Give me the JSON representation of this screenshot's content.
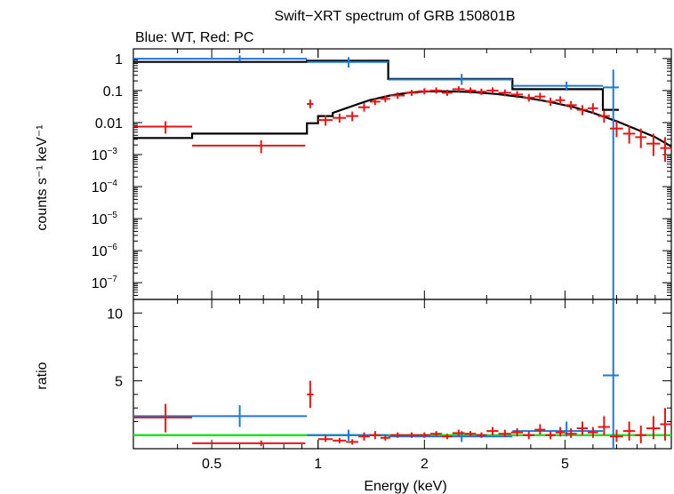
{
  "chart_data": {
    "type": "scatter",
    "title": "Swift−XRT spectrum of GRB 150801B",
    "subtitle": "Blue: WT, Red: PC",
    "xlabel": "Energy (keV)",
    "x_scale": "log",
    "xlim": [
      0.3,
      10
    ],
    "x_ticks": [
      "0.5",
      "1",
      "2",
      "5"
    ],
    "colors": {
      "wt": "#1e78dc",
      "pc": "#e61414",
      "model": "#000000",
      "unity": "#1ee61e"
    },
    "panels": [
      {
        "name": "spectrum",
        "ylabel": "counts s⁻¹ keV⁻¹",
        "y_scale": "log",
        "ylim": [
          3e-08,
          2.0
        ],
        "y_ticks": [
          {
            "v": 1,
            "label": "1"
          },
          {
            "v": 0.1,
            "label": "0.1"
          },
          {
            "v": 0.01,
            "label": "0.01"
          },
          {
            "v": 0.001,
            "label": "10",
            "exp": "−3"
          },
          {
            "v": 0.0001,
            "label": "10",
            "exp": "−4"
          },
          {
            "v": 1e-05,
            "label": "10",
            "exp": "−5"
          },
          {
            "v": 1e-06,
            "label": "10",
            "exp": "−6"
          },
          {
            "v": 1e-07,
            "label": "10",
            "exp": "−7"
          }
        ],
        "series": [
          {
            "key": "wt",
            "points": [
              {
                "x": 0.6,
                "xlo": 0.3,
                "xhi": 0.93,
                "y": 0.98,
                "ylo": 0.8,
                "yhi": 1.25
              },
              {
                "x": 1.22,
                "xlo": 0.93,
                "xhi": 1.58,
                "y": 0.78,
                "ylo": 0.52,
                "yhi": 1.1
              },
              {
                "x": 2.55,
                "xlo": 1.58,
                "xhi": 3.55,
                "y": 0.22,
                "ylo": 0.15,
                "yhi": 0.33
              },
              {
                "x": 5.05,
                "xlo": 3.55,
                "xhi": 6.4,
                "y": 0.14,
                "ylo": 0.1,
                "yhi": 0.19
              },
              {
                "x": 6.85,
                "xlo": 6.4,
                "xhi": 7.1,
                "y": 0.125,
                "ylo": 1e-10,
                "yhi": 0.45
              }
            ]
          },
          {
            "key": "pc",
            "points": [
              {
                "x": 0.37,
                "xlo": 0.3,
                "xhi": 0.44,
                "y": 0.0075,
                "ylo": 0.0045,
                "yhi": 0.011
              },
              {
                "x": 0.69,
                "xlo": 0.44,
                "xhi": 0.92,
                "y": 0.0019,
                "ylo": 0.0011,
                "yhi": 0.0028
              },
              {
                "x": 0.95,
                "xlo": 0.93,
                "xhi": 0.97,
                "y": 0.038,
                "ylo": 0.028,
                "yhi": 0.052
              },
              {
                "x": 1.05,
                "xlo": 1.0,
                "xhi": 1.1,
                "y": 0.012,
                "ylo": 0.008,
                "yhi": 0.017
              },
              {
                "x": 1.15,
                "xlo": 1.1,
                "xhi": 1.2,
                "y": 0.014,
                "ylo": 0.01,
                "yhi": 0.019
              },
              {
                "x": 1.25,
                "xlo": 1.2,
                "xhi": 1.3,
                "y": 0.016,
                "ylo": 0.011,
                "yhi": 0.022
              },
              {
                "x": 1.35,
                "xlo": 1.3,
                "xhi": 1.4,
                "y": 0.03,
                "ylo": 0.022,
                "yhi": 0.04
              },
              {
                "x": 1.45,
                "xlo": 1.4,
                "xhi": 1.5,
                "y": 0.045,
                "ylo": 0.035,
                "yhi": 0.058
              },
              {
                "x": 1.55,
                "xlo": 1.5,
                "xhi": 1.6,
                "y": 0.055,
                "ylo": 0.043,
                "yhi": 0.07
              },
              {
                "x": 1.68,
                "xlo": 1.6,
                "xhi": 1.76,
                "y": 0.07,
                "ylo": 0.055,
                "yhi": 0.088
              },
              {
                "x": 1.84,
                "xlo": 1.76,
                "xhi": 1.92,
                "y": 0.085,
                "ylo": 0.068,
                "yhi": 0.105
              },
              {
                "x": 2.0,
                "xlo": 1.92,
                "xhi": 2.08,
                "y": 0.095,
                "ylo": 0.076,
                "yhi": 0.118
              },
              {
                "x": 2.16,
                "xlo": 2.08,
                "xhi": 2.24,
                "y": 0.1,
                "ylo": 0.08,
                "yhi": 0.125
              },
              {
                "x": 2.32,
                "xlo": 2.24,
                "xhi": 2.4,
                "y": 0.085,
                "ylo": 0.068,
                "yhi": 0.106
              },
              {
                "x": 2.5,
                "xlo": 2.4,
                "xhi": 2.6,
                "y": 0.11,
                "ylo": 0.088,
                "yhi": 0.136
              },
              {
                "x": 2.7,
                "xlo": 2.6,
                "xhi": 2.8,
                "y": 0.1,
                "ylo": 0.08,
                "yhi": 0.125
              },
              {
                "x": 2.9,
                "xlo": 2.8,
                "xhi": 3.0,
                "y": 0.092,
                "ylo": 0.073,
                "yhi": 0.115
              },
              {
                "x": 3.12,
                "xlo": 3.0,
                "xhi": 3.24,
                "y": 0.1,
                "ylo": 0.08,
                "yhi": 0.125
              },
              {
                "x": 3.38,
                "xlo": 3.24,
                "xhi": 3.52,
                "y": 0.085,
                "ylo": 0.066,
                "yhi": 0.108
              },
              {
                "x": 3.66,
                "xlo": 3.52,
                "xhi": 3.8,
                "y": 0.075,
                "ylo": 0.058,
                "yhi": 0.096
              },
              {
                "x": 3.95,
                "xlo": 3.8,
                "xhi": 4.1,
                "y": 0.06,
                "ylo": 0.045,
                "yhi": 0.078
              },
              {
                "x": 4.25,
                "xlo": 4.1,
                "xhi": 4.4,
                "y": 0.065,
                "ylo": 0.049,
                "yhi": 0.085
              },
              {
                "x": 4.55,
                "xlo": 4.4,
                "xhi": 4.7,
                "y": 0.045,
                "ylo": 0.033,
                "yhi": 0.06
              },
              {
                "x": 4.85,
                "xlo": 4.7,
                "xhi": 5.0,
                "y": 0.05,
                "ylo": 0.037,
                "yhi": 0.066
              },
              {
                "x": 5.2,
                "xlo": 5.0,
                "xhi": 5.4,
                "y": 0.035,
                "ylo": 0.025,
                "yhi": 0.047
              },
              {
                "x": 5.6,
                "xlo": 5.4,
                "xhi": 5.8,
                "y": 0.025,
                "ylo": 0.017,
                "yhi": 0.035
              },
              {
                "x": 6.0,
                "xlo": 5.8,
                "xhi": 6.2,
                "y": 0.028,
                "ylo": 0.019,
                "yhi": 0.04
              },
              {
                "x": 6.45,
                "xlo": 6.2,
                "xhi": 6.7,
                "y": 0.016,
                "ylo": 0.01,
                "yhi": 0.024
              },
              {
                "x": 7.0,
                "xlo": 6.7,
                "xhi": 7.3,
                "y": 0.0065,
                "ylo": 0.0035,
                "yhi": 0.011
              },
              {
                "x": 7.6,
                "xlo": 7.3,
                "xhi": 7.9,
                "y": 0.0045,
                "ylo": 0.0022,
                "yhi": 0.008
              },
              {
                "x": 8.2,
                "xlo": 7.9,
                "xhi": 8.5,
                "y": 0.0035,
                "ylo": 0.0016,
                "yhi": 0.0065
              },
              {
                "x": 8.9,
                "xlo": 8.5,
                "xhi": 9.3,
                "y": 0.0022,
                "ylo": 0.0009,
                "yhi": 0.0045
              },
              {
                "x": 9.6,
                "xlo": 9.3,
                "xhi": 10.0,
                "y": 0.0016,
                "ylo": 0.0006,
                "yhi": 0.0035
              }
            ]
          }
        ],
        "models": [
          {
            "key": "wt",
            "steps": [
              [
                0.3,
                0.93,
                0.78
              ],
              [
                0.93,
                1.58,
                0.85
              ],
              [
                1.58,
                3.55,
                0.23
              ],
              [
                3.55,
                6.4,
                0.11
              ],
              [
                6.4,
                7.1,
                0.025
              ]
            ]
          },
          {
            "key": "pc",
            "steps": [
              [
                0.3,
                0.44,
                0.0033
              ],
              [
                0.44,
                0.93,
                0.0045
              ],
              [
                0.93,
                1.0,
                0.0095
              ],
              [
                1.0,
                1.1,
                0.016
              ]
            ],
            "curve": [
              [
                1.1,
                0.02
              ],
              [
                1.2,
                0.028
              ],
              [
                1.3,
                0.038
              ],
              [
                1.4,
                0.05
              ],
              [
                1.6,
                0.07
              ],
              [
                1.8,
                0.085
              ],
              [
                2.0,
                0.093
              ],
              [
                2.3,
                0.095
              ],
              [
                2.7,
                0.09
              ],
              [
                3.2,
                0.078
              ],
              [
                3.8,
                0.062
              ],
              [
                4.5,
                0.045
              ],
              [
                5.3,
                0.03
              ],
              [
                6.0,
                0.02
              ],
              [
                7.0,
                0.011
              ],
              [
                8.0,
                0.006
              ],
              [
                9.0,
                0.0035
              ],
              [
                10.0,
                0.0018
              ]
            ]
          }
        ]
      },
      {
        "name": "ratio",
        "ylabel": "ratio",
        "y_scale": "linear",
        "ylim": [
          0,
          11
        ],
        "y_ticks": [
          {
            "v": 5,
            "label": "5"
          },
          {
            "v": 10,
            "label": "10"
          }
        ],
        "unity": 1,
        "series": [
          {
            "key": "wt",
            "points": [
              {
                "x": 0.6,
                "xlo": 0.3,
                "xhi": 0.93,
                "y": 2.4,
                "ylo": 1.6,
                "yhi": 3.2
              },
              {
                "x": 1.22,
                "xlo": 0.93,
                "xhi": 1.58,
                "y": 1.0,
                "ylo": 0.6,
                "yhi": 1.4
              },
              {
                "x": 2.55,
                "xlo": 1.58,
                "xhi": 3.55,
                "y": 0.9,
                "ylo": 0.5,
                "yhi": 1.3
              },
              {
                "x": 5.05,
                "xlo": 3.55,
                "xhi": 6.4,
                "y": 1.3,
                "ylo": 0.9,
                "yhi": 2.0
              },
              {
                "x": 6.85,
                "xlo": 6.4,
                "xhi": 7.1,
                "y": 5.4,
                "ylo": 0,
                "yhi": 11
              }
            ]
          },
          {
            "key": "pc",
            "points": [
              {
                "x": 0.37,
                "xlo": 0.3,
                "xhi": 0.44,
                "y": 2.3,
                "ylo": 1.2,
                "yhi": 3.3
              },
              {
                "x": 0.69,
                "xlo": 0.44,
                "xhi": 0.92,
                "y": 0.4,
                "ylo": 0.2,
                "yhi": 0.6
              },
              {
                "x": 0.95,
                "xlo": 0.93,
                "xhi": 0.97,
                "y": 4.0,
                "ylo": 3.0,
                "yhi": 5.0
              },
              {
                "x": 1.05,
                "xlo": 1.0,
                "xhi": 1.1,
                "y": 0.7,
                "ylo": 0.5,
                "yhi": 1.0
              },
              {
                "x": 1.15,
                "xlo": 1.1,
                "xhi": 1.2,
                "y": 0.6,
                "ylo": 0.4,
                "yhi": 0.8
              },
              {
                "x": 1.25,
                "xlo": 1.2,
                "xhi": 1.3,
                "y": 0.5,
                "ylo": 0.3,
                "yhi": 0.7
              },
              {
                "x": 1.35,
                "xlo": 1.3,
                "xhi": 1.4,
                "y": 0.9,
                "ylo": 0.6,
                "yhi": 1.2
              },
              {
                "x": 1.45,
                "xlo": 1.4,
                "xhi": 1.5,
                "y": 1.0,
                "ylo": 0.7,
                "yhi": 1.3
              },
              {
                "x": 1.55,
                "xlo": 1.5,
                "xhi": 1.6,
                "y": 0.8,
                "ylo": 0.6,
                "yhi": 1.0
              },
              {
                "x": 1.68,
                "xlo": 1.6,
                "xhi": 1.76,
                "y": 1.0,
                "ylo": 0.8,
                "yhi": 1.2
              },
              {
                "x": 1.84,
                "xlo": 1.76,
                "xhi": 1.92,
                "y": 1.0,
                "ylo": 0.8,
                "yhi": 1.2
              },
              {
                "x": 2.0,
                "xlo": 1.92,
                "xhi": 2.08,
                "y": 1.0,
                "ylo": 0.8,
                "yhi": 1.2
              },
              {
                "x": 2.16,
                "xlo": 2.08,
                "xhi": 2.24,
                "y": 1.1,
                "ylo": 0.9,
                "yhi": 1.3
              },
              {
                "x": 2.32,
                "xlo": 2.24,
                "xhi": 2.4,
                "y": 0.9,
                "ylo": 0.7,
                "yhi": 1.1
              },
              {
                "x": 2.5,
                "xlo": 2.4,
                "xhi": 2.6,
                "y": 1.15,
                "ylo": 0.9,
                "yhi": 1.4
              },
              {
                "x": 2.7,
                "xlo": 2.6,
                "xhi": 2.8,
                "y": 1.1,
                "ylo": 0.9,
                "yhi": 1.3
              },
              {
                "x": 2.9,
                "xlo": 2.8,
                "xhi": 3.0,
                "y": 1.0,
                "ylo": 0.8,
                "yhi": 1.2
              },
              {
                "x": 3.12,
                "xlo": 3.0,
                "xhi": 3.24,
                "y": 1.3,
                "ylo": 1.0,
                "yhi": 1.6
              },
              {
                "x": 3.38,
                "xlo": 3.24,
                "xhi": 3.52,
                "y": 1.1,
                "ylo": 0.85,
                "yhi": 1.4
              },
              {
                "x": 3.66,
                "xlo": 3.52,
                "xhi": 3.8,
                "y": 1.2,
                "ylo": 0.9,
                "yhi": 1.5
              },
              {
                "x": 3.95,
                "xlo": 3.8,
                "xhi": 4.1,
                "y": 1.0,
                "ylo": 0.7,
                "yhi": 1.3
              },
              {
                "x": 4.25,
                "xlo": 4.1,
                "xhi": 4.4,
                "y": 1.4,
                "ylo": 1.05,
                "yhi": 1.8
              },
              {
                "x": 4.55,
                "xlo": 4.4,
                "xhi": 4.7,
                "y": 1.0,
                "ylo": 0.7,
                "yhi": 1.3
              },
              {
                "x": 4.85,
                "xlo": 4.7,
                "xhi": 5.0,
                "y": 1.2,
                "ylo": 0.9,
                "yhi": 1.6
              },
              {
                "x": 5.2,
                "xlo": 5.0,
                "xhi": 5.4,
                "y": 1.1,
                "ylo": 0.8,
                "yhi": 1.5
              },
              {
                "x": 5.6,
                "xlo": 5.4,
                "xhi": 5.8,
                "y": 1.5,
                "ylo": 1.0,
                "yhi": 2.0
              },
              {
                "x": 6.0,
                "xlo": 5.8,
                "xhi": 6.2,
                "y": 1.2,
                "ylo": 0.8,
                "yhi": 1.6
              },
              {
                "x": 6.45,
                "xlo": 6.2,
                "xhi": 6.7,
                "y": 1.6,
                "ylo": 1.0,
                "yhi": 2.4
              },
              {
                "x": 7.0,
                "xlo": 6.7,
                "xhi": 7.3,
                "y": 0.9,
                "ylo": 0.5,
                "yhi": 1.4
              },
              {
                "x": 7.6,
                "xlo": 7.3,
                "xhi": 7.9,
                "y": 1.3,
                "ylo": 0.6,
                "yhi": 2.0
              },
              {
                "x": 8.2,
                "xlo": 7.9,
                "xhi": 8.5,
                "y": 1.0,
                "ylo": 0.4,
                "yhi": 1.7
              },
              {
                "x": 8.9,
                "xlo": 8.5,
                "xhi": 9.3,
                "y": 1.5,
                "ylo": 0.7,
                "yhi": 2.4
              },
              {
                "x": 9.6,
                "xlo": 9.3,
                "xhi": 10.0,
                "y": 1.8,
                "ylo": 0.6,
                "yhi": 3.0
              }
            ]
          }
        ]
      }
    ]
  }
}
